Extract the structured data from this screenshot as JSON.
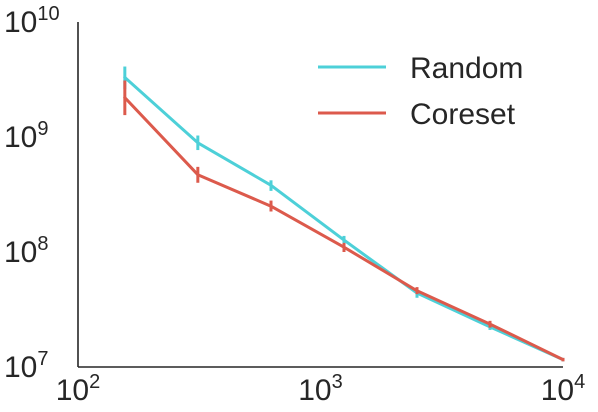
{
  "chart_data": {
    "type": "line",
    "title": "",
    "xlabel": "",
    "ylabel": "",
    "xscale": "log",
    "yscale": "log",
    "xlim": [
      100,
      10000
    ],
    "ylim": [
      10000000,
      10000000000
    ],
    "grid": false,
    "legend": "top-right",
    "x_ticks": [
      {
        "value": 100,
        "base": "10",
        "exp": "2"
      },
      {
        "value": 1000,
        "base": "10",
        "exp": "3"
      },
      {
        "value": 10000,
        "base": "10",
        "exp": "4"
      }
    ],
    "y_ticks": [
      {
        "value": 10000000,
        "base": "10",
        "exp": "7"
      },
      {
        "value": 100000000,
        "base": "10",
        "exp": "8"
      },
      {
        "value": 1000000000,
        "base": "10",
        "exp": "9"
      },
      {
        "value": 10000000000,
        "base": "10",
        "exp": "10"
      }
    ],
    "x": [
      156,
      312,
      625,
      1250,
      2500,
      5000,
      10000
    ],
    "series": [
      {
        "name": "Random",
        "color": "#4dd0d8",
        "values": [
          3300000000,
          890000000,
          380000000,
          127000000,
          44000000,
          22300000,
          11600000
        ],
        "err_low": [
          2600000000,
          770000000,
          340000000,
          116000000,
          40000000,
          21000000,
          11200000
        ],
        "err_high": [
          4100000000,
          1030000000,
          420000000,
          138000000,
          48000000,
          23800000,
          12000000
        ]
      },
      {
        "name": "Coreset",
        "color": "#dc5a4c",
        "values": [
          2200000000,
          470000000,
          250000000,
          110000000,
          46000000,
          23600000,
          11600000
        ],
        "err_low": [
          1550000000,
          400000000,
          225000000,
          100000000,
          43000000,
          22000000,
          11200000
        ],
        "err_high": [
          3100000000,
          550000000,
          280000000,
          120000000,
          49500000,
          25200000,
          12000000
        ]
      }
    ]
  }
}
